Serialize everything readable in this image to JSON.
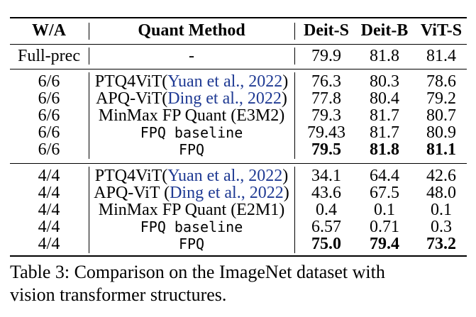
{
  "table": {
    "headers": {
      "wa": "W/A",
      "method": "Quant Method",
      "deit_s": "Deit-S",
      "deit_b": "Deit-B",
      "vit_s": "ViT-S"
    },
    "full_prec": {
      "wa": "Full-prec",
      "method": "-",
      "deit_s": "79.9",
      "deit_b": "81.8",
      "vit_s": "81.4"
    },
    "group_66": [
      {
        "wa": "6/6",
        "method": "PTQ4ViT(",
        "cite": "Yuan et al., 2022",
        "method_end": ")",
        "deit_s": "76.3",
        "deit_b": "80.3",
        "vit_s": "78.6"
      },
      {
        "wa": "6/6",
        "method": "APQ-ViT(",
        "cite": "Ding et al., 2022",
        "method_end": ")",
        "deit_s": "77.8",
        "deit_b": "80.4",
        "vit_s": "79.2"
      },
      {
        "wa": "6/6",
        "method": "MinMax FP Quant (E3M2)",
        "deit_s": "79.3",
        "deit_b": "81.7",
        "vit_s": "80.7"
      },
      {
        "wa": "6/6",
        "method": "FPQ baseline",
        "deit_s": "79.43",
        "deit_b": "81.7",
        "vit_s": "80.9"
      },
      {
        "wa": "6/6",
        "method": "FPQ",
        "deit_s": "79.5",
        "deit_b": "81.8",
        "vit_s": "81.1"
      }
    ],
    "group_44": [
      {
        "wa": "4/4",
        "method": "PTQ4ViT(",
        "cite": "Yuan et al., 2022",
        "method_end": ")",
        "deit_s": "34.1",
        "deit_b": "64.4",
        "vit_s": "42.6"
      },
      {
        "wa": "4/4",
        "method": "APQ-ViT (",
        "cite": "Ding et al., 2022",
        "method_end": ")",
        "deit_s": "43.6",
        "deit_b": "67.5",
        "vit_s": "48.0"
      },
      {
        "wa": "4/4",
        "method": "MinMax FP Quant (E2M1)",
        "deit_s": "0.4",
        "deit_b": "0.1",
        "vit_s": "0.1"
      },
      {
        "wa": "4/4",
        "method": "FPQ baseline",
        "deit_s": "6.57",
        "deit_b": "0.71",
        "vit_s": "0.3"
      },
      {
        "wa": "4/4",
        "method": "FPQ",
        "deit_s": "75.0",
        "deit_b": "79.4",
        "vit_s": "73.2"
      }
    ]
  },
  "caption": {
    "line1": "Table 3: Comparison on the ImageNet dataset with",
    "line2": "vision transformer structures."
  },
  "colors": {
    "citation": "#1f3a93"
  }
}
